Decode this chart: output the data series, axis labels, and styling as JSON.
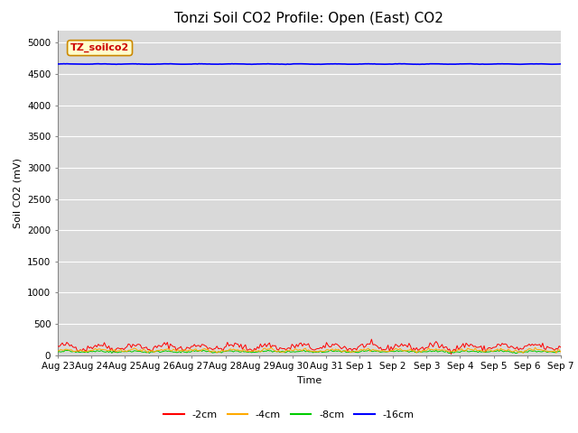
{
  "title": "Tonzi Soil CO2 Profile: Open (East) CO2",
  "ylabel": "Soil CO2 (mV)",
  "xlabel": "Time",
  "watermark_text": "TZ_soilco2",
  "ylim": [
    0,
    5200
  ],
  "yticks": [
    0,
    500,
    1000,
    1500,
    2000,
    2500,
    3000,
    3500,
    4000,
    4500,
    5000
  ],
  "n_points": 336,
  "series": {
    "2cm": {
      "color": "#ff0000",
      "mean": 130,
      "amplitude": 35,
      "noise": 25
    },
    "4cm": {
      "color": "#ffaa00",
      "mean": 75,
      "amplitude": 15,
      "noise": 12
    },
    "8cm": {
      "color": "#00cc00",
      "mean": 55,
      "amplitude": 10,
      "noise": 8
    },
    "16cm": {
      "color": "#0000ff",
      "mean": 4660,
      "amplitude": 3,
      "noise": 1
    }
  },
  "legend_labels": [
    "-2cm",
    "-4cm",
    "-8cm",
    "-16cm"
  ],
  "legend_colors": [
    "#ff0000",
    "#ffaa00",
    "#00cc00",
    "#0000ff"
  ],
  "plot_bg_color": "#d9d9d9",
  "fig_bg_color": "#ffffff",
  "grid_color": "#ffffff",
  "title_fontsize": 11,
  "label_fontsize": 8,
  "tick_fontsize": 7.5,
  "watermark_fontsize": 8
}
